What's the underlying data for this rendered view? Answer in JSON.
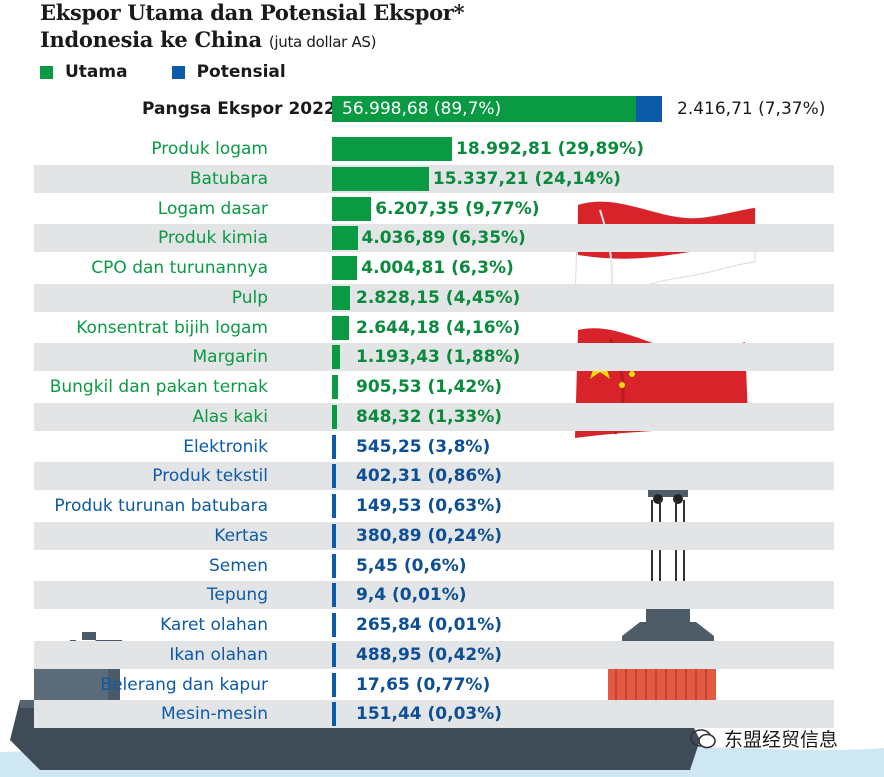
{
  "title_line1": "Ekspor Utama dan Potensial Ekspor*",
  "title_line2": "Indonesia ke China",
  "title_unit": "(juta dollar AS)",
  "legend": [
    {
      "label": "Utama",
      "color": "#0a9a44"
    },
    {
      "label": "Potensial",
      "color": "#0d5aa7"
    }
  ],
  "total": {
    "label": "Pangsa Ekspor 2022",
    "utama_text": "56.998,68 (89,7%)",
    "potensial_text": "2.416,71 (7,37%)"
  },
  "watermark": "东盟经贸信息",
  "colors": {
    "utama": "#0a9a44",
    "potensial": "#0d5aa7"
  },
  "chart_data": {
    "type": "bar",
    "orientation": "horizontal",
    "title": "Ekspor Utama dan Potensial Ekspor* Indonesia ke China (juta dollar AS)",
    "total": {
      "utama": 56998.68,
      "utama_pct": 89.7,
      "potensial": 2416.71,
      "potensial_pct": 7.37
    },
    "categories": [
      "Produk logam",
      "Batubara",
      "Logam dasar",
      "Produk kimia",
      "CPO dan turunannya",
      "Pulp",
      "Konsentrat bijih logam",
      "Margarin",
      "Bungkil dan pakan ternak",
      "Alas kaki",
      "Elektronik",
      "Produk tekstil",
      "Produk turunan batubara",
      "Kertas",
      "Semen",
      "Tepung",
      "Karet olahan",
      "Ikan olahan",
      "Belerang dan kapur",
      "Mesin-mesin"
    ],
    "values": [
      18992.81,
      15337.21,
      6207.35,
      4036.89,
      4004.81,
      2828.15,
      2644.18,
      1193.43,
      905.53,
      848.32,
      545.25,
      402.31,
      149.53,
      380.89,
      5.45,
      9.4,
      265.84,
      488.95,
      17.65,
      151.44
    ],
    "value_labels": [
      "18.992,81 (29,89%)",
      "15.337,21 (24,14%)",
      "6.207,35 (9,77%)",
      "4.036,89 (6,35%)",
      "4.004,81 (6,3%)",
      "2.828,15 (4,45%)",
      "2.644,18 (4,16%)",
      "1.193,43 (1,88%)",
      "905,53 (1,42%)",
      "848,32 (1,33%)",
      "545,25 (3,8%)",
      "402,31 (0,86%)",
      "149,53 (0,63%)",
      "380,89 (0,24%)",
      "5,45 (0,6%)",
      "9,4 (0,01%)",
      "265,84 (0,01%)",
      "488,95 (0,42%)",
      "17,65 (0,77%)",
      "151,44 (0,03%)"
    ],
    "group": [
      "utama",
      "utama",
      "utama",
      "utama",
      "utama",
      "utama",
      "utama",
      "utama",
      "utama",
      "utama",
      "potensial",
      "potensial",
      "potensial",
      "potensial",
      "potensial",
      "potensial",
      "potensial",
      "potensial",
      "potensial",
      "potensial"
    ]
  }
}
